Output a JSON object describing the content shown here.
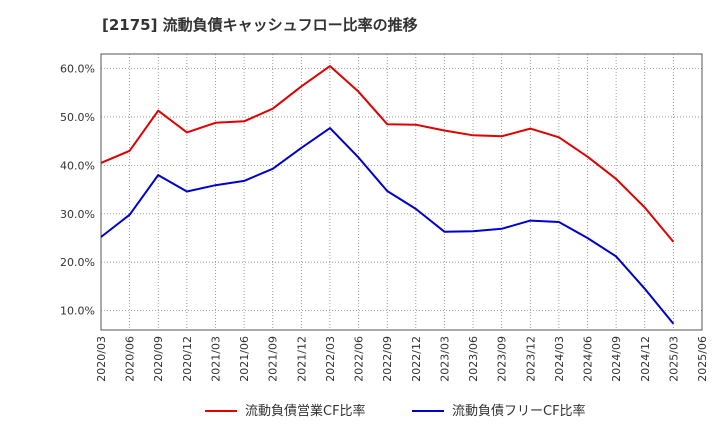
{
  "chart_data": {
    "type": "line",
    "title": "[2175]  流動負債キャッシュフロー比率の推移",
    "x": [
      "2020/03",
      "2020/06",
      "2020/09",
      "2020/12",
      "2021/03",
      "2021/06",
      "2021/09",
      "2021/12",
      "2022/03",
      "2022/06",
      "2022/09",
      "2022/12",
      "2023/03",
      "2023/06",
      "2023/09",
      "2023/12",
      "2024/03",
      "2024/06",
      "2024/09",
      "2024/12",
      "2025/03",
      "2025/06"
    ],
    "series": [
      {
        "name": "流動負債営業CF比率",
        "color": "#e00000",
        "values": [
          40.5,
          43.0,
          51.3,
          46.8,
          48.8,
          49.1,
          51.7,
          56.3,
          60.5,
          55.2,
          48.5,
          48.4,
          47.2,
          46.2,
          46.0,
          47.6,
          45.8,
          41.8,
          37.2,
          31.3,
          24.2,
          null
        ]
      },
      {
        "name": "流動負債フリーCF比率",
        "color": "#0000cc",
        "values": [
          25.2,
          29.8,
          38.0,
          34.6,
          35.9,
          36.8,
          39.3,
          43.6,
          47.7,
          41.6,
          34.7,
          31.0,
          26.3,
          26.4,
          26.9,
          28.6,
          28.3,
          25.0,
          21.2,
          14.5,
          7.3,
          null
        ]
      }
    ],
    "yticks": [
      10,
      20,
      30,
      40,
      50,
      60
    ],
    "ytick_labels": [
      "10.0%",
      "20.0%",
      "30.0%",
      "40.0%",
      "50.0%",
      "60.0%"
    ],
    "ylim": [
      6.0,
      63.0
    ],
    "grid": true,
    "legend_position": "bottom"
  }
}
